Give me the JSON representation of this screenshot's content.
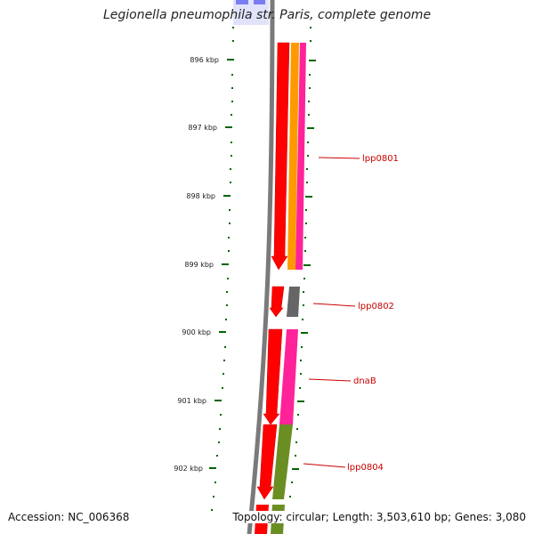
{
  "title": "Legionella pneumophila str. Paris, complete genome",
  "footer": {
    "accession": "Accession: NC_006368",
    "summary": "Topology: circular; Length: 3,503,610 bp; Genes: 3,080"
  },
  "scale_labels": [
    "896 kbp",
    "897 kbp",
    "898 kbp",
    "899 kbp",
    "900 kbp",
    "901 kbp",
    "902 kbp"
  ],
  "gene_labels": [
    "lpp0801",
    "lpp0802",
    "dnaB",
    "lpp0804"
  ],
  "colors": {
    "forward_cds": "#ff0000",
    "orange": "#ff9900",
    "magenta": "#ff2299",
    "gray": "#666666",
    "olive": "#6b8e23",
    "blue": "#0000ee",
    "backbone": "#7a7a7a",
    "tick": "#006600",
    "label": "#cc0000"
  }
}
